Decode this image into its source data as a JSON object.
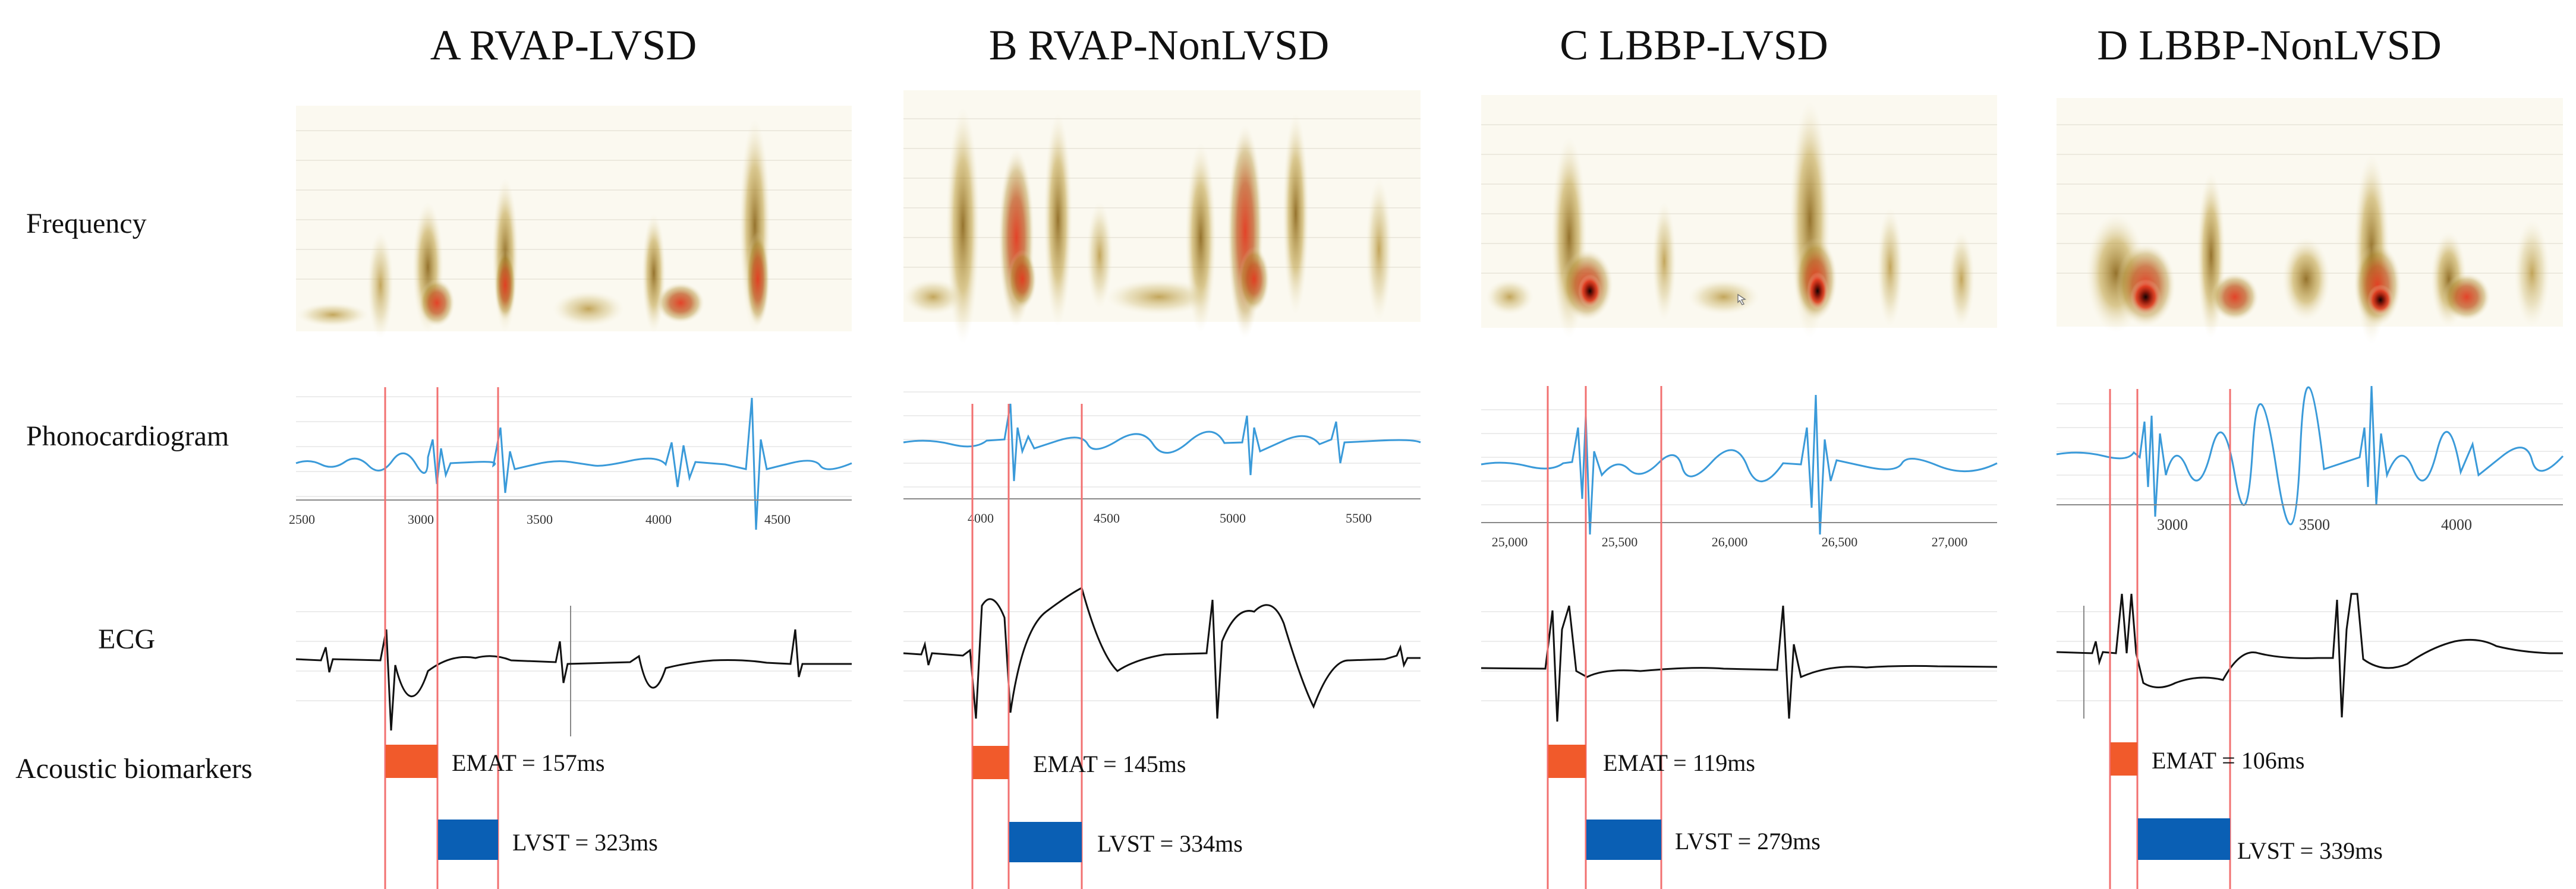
{
  "row_labels": {
    "frequency": "Frequency",
    "phonocardiogram": "Phonocardiogram",
    "ecg": "ECG",
    "acoustic_biomarkers": "Acoustic biomarkers"
  },
  "panels": [
    {
      "id": "A",
      "title": "A  RVAP-LVSD",
      "axis_ticks": [
        "2500",
        "3000",
        "3500",
        "4000",
        "4500"
      ],
      "emat": "EMAT = 157ms",
      "lvst": "LVST = 323ms"
    },
    {
      "id": "B",
      "title": "B  RVAP-NonLVSD",
      "axis_ticks": [
        "4000",
        "4500",
        "5000",
        "5500"
      ],
      "emat": "EMAT = 145ms",
      "lvst": "LVST = 334ms"
    },
    {
      "id": "C",
      "title": "C  LBBP-LVSD",
      "axis_ticks": [
        "25,000",
        "25,500",
        "26,000",
        "26,500",
        "27,000"
      ],
      "emat": "EMAT = 119ms",
      "lvst": "LVST = 279ms"
    },
    {
      "id": "D",
      "title": "D  LBBP-NonLVSD",
      "axis_ticks": [
        "3000",
        "3500",
        "4000"
      ],
      "emat": "EMAT = 106ms",
      "lvst": "LVST = 339ms"
    }
  ],
  "colors": {
    "emat_bar": "#f15a2b",
    "lvst_bar": "#0a5fb4",
    "marker_line": "#f27070",
    "pcg_trace": "#3a9ad9",
    "ecg_trace": "#111111",
    "spec_low": "#d8cfa3",
    "spec_mid": "#b08a2a",
    "spec_high": "#d6321f",
    "spec_peak": "#150505"
  }
}
